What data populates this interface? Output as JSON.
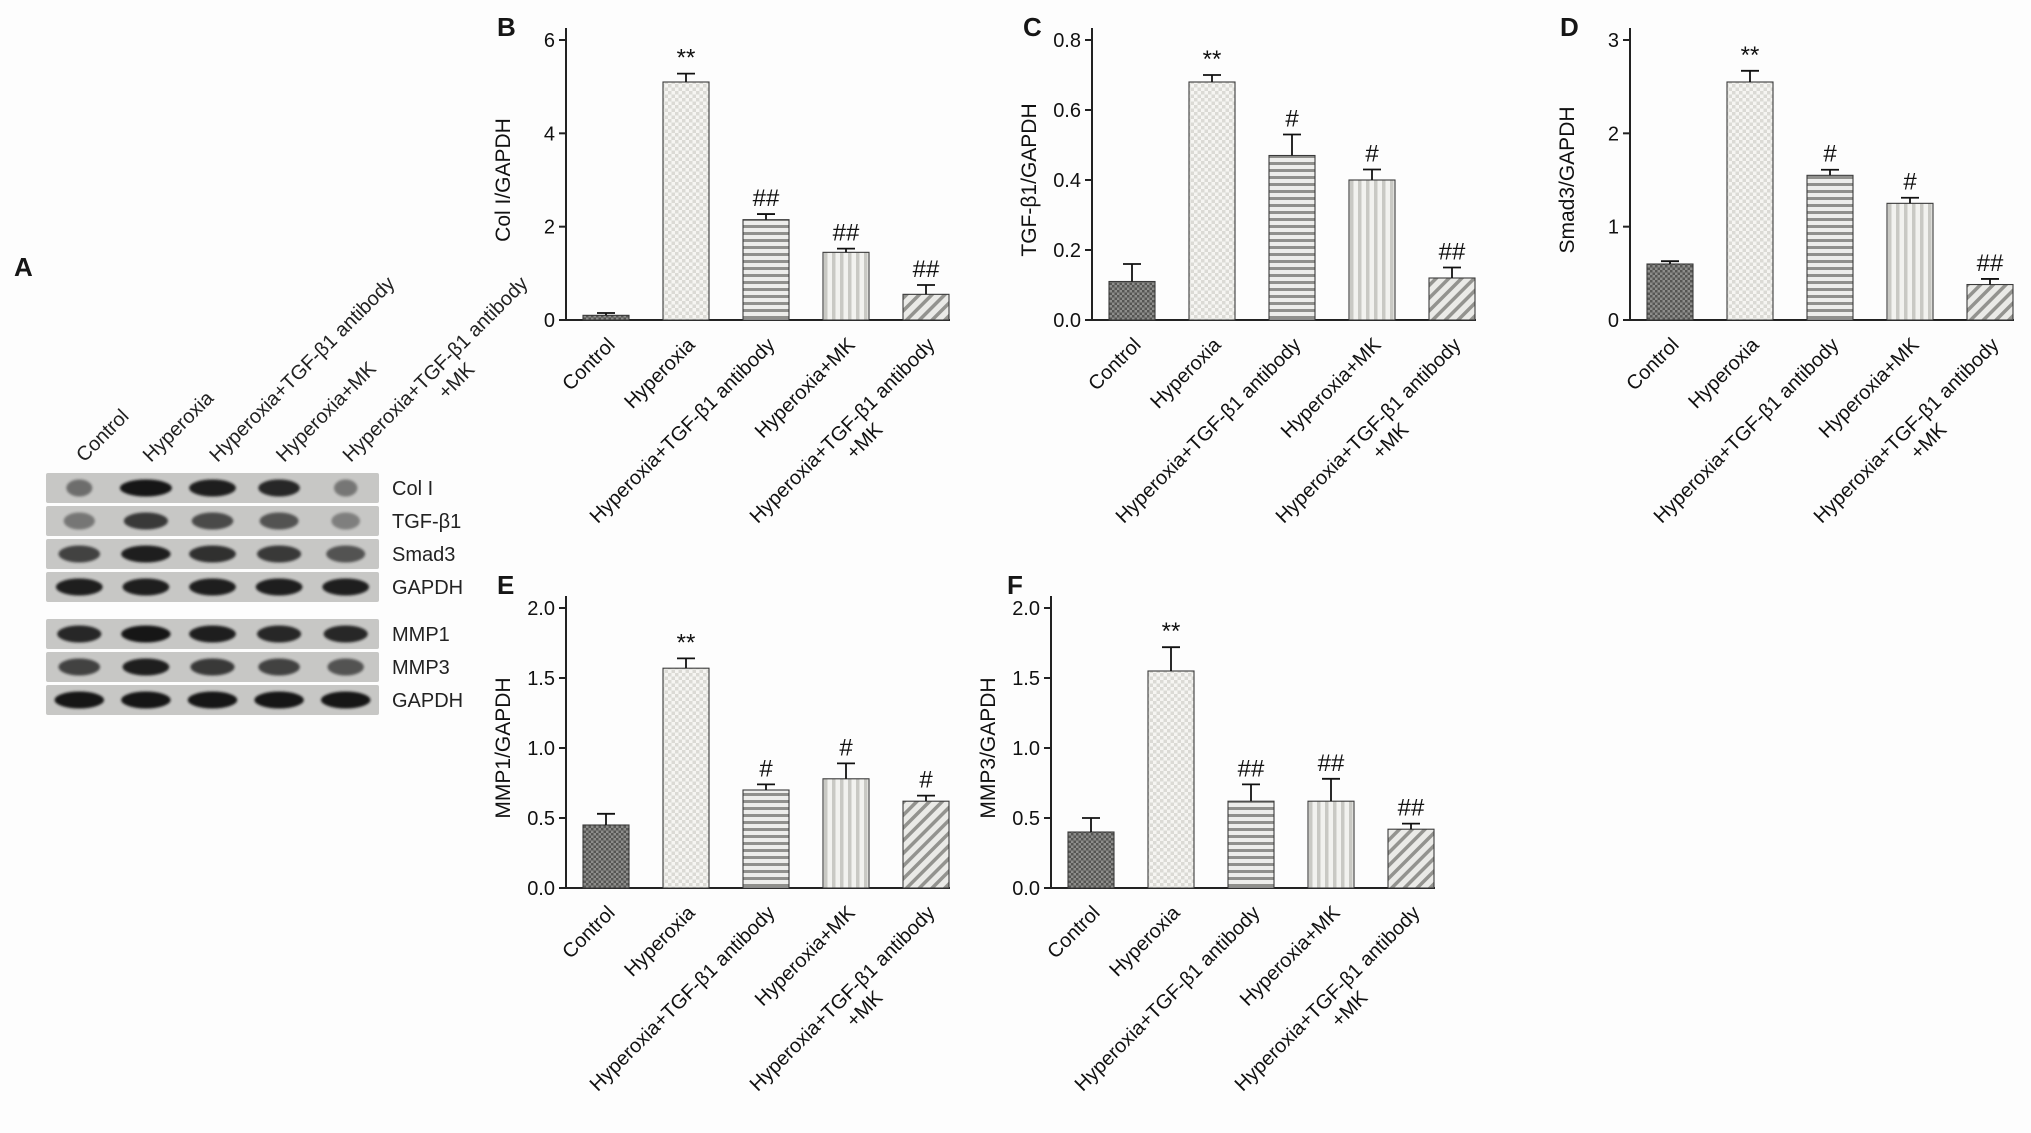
{
  "panel_labels": [
    "A",
    "B",
    "C",
    "D",
    "E",
    "F"
  ],
  "colors": {
    "background": "#fdfdfd",
    "axis": "#222222",
    "bar_dark_checker": "#555553",
    "bar_light_checker": "#dbdad5",
    "bar_stripe_gray": "#90908d",
    "blot_strip": "#c7c7c5",
    "band": "#151515"
  },
  "categories": [
    "Control",
    "Hyperoxia",
    "Hyperoxia+TGF-β1 antibody",
    "Hyperoxia+MK",
    "Hyperoxia+TGF-β1 antibody\n+MK"
  ],
  "bar_styles": [
    "dark-checker",
    "light-checker",
    "horizontal-lines",
    "vertical-lines",
    "diagonal-lines"
  ],
  "blot": {
    "panel_label": "A",
    "lane_labels": [
      "Control",
      "Hyperoxia",
      "Hyperoxia+TGF-β1 antibody",
      "Hyperoxia+MK",
      "Hyperoxia+TGF-β1 antibody\n+MK"
    ],
    "rows": [
      {
        "label": "Col I",
        "intensities": [
          0.5,
          1.0,
          0.95,
          0.9,
          0.45
        ],
        "widths": [
          0.5,
          1.0,
          0.9,
          0.8,
          0.45
        ]
      },
      {
        "label": "TGF-β1",
        "intensities": [
          0.45,
          0.8,
          0.7,
          0.65,
          0.4
        ],
        "widths": [
          0.6,
          0.85,
          0.8,
          0.75,
          0.55
        ]
      },
      {
        "label": "Smad3",
        "intensities": [
          0.75,
          0.95,
          0.85,
          0.8,
          0.65
        ],
        "widths": [
          0.8,
          0.95,
          0.9,
          0.85,
          0.75
        ]
      },
      {
        "label": "GAPDH",
        "intensities": [
          0.95,
          0.95,
          0.95,
          0.95,
          0.95
        ],
        "widths": [
          0.9,
          0.9,
          0.9,
          0.9,
          0.9
        ]
      },
      {
        "label": "MMP1",
        "intensities": [
          0.9,
          1.0,
          0.95,
          0.9,
          0.9
        ],
        "widths": [
          0.85,
          0.95,
          0.9,
          0.85,
          0.85
        ]
      },
      {
        "label": "MMP3",
        "intensities": [
          0.75,
          0.95,
          0.8,
          0.75,
          0.65
        ],
        "widths": [
          0.8,
          0.9,
          0.85,
          0.8,
          0.7
        ]
      },
      {
        "label": "GAPDH",
        "intensities": [
          1.0,
          1.0,
          1.0,
          1.0,
          1.0
        ],
        "widths": [
          0.95,
          0.95,
          0.95,
          0.95,
          0.95
        ]
      }
    ]
  },
  "chart_data": [
    {
      "panel": "B",
      "type": "bar",
      "categories": [
        "Control",
        "Hyperoxia",
        "Hyperoxia+TGF-β1 antibody",
        "Hyperoxia+MK",
        "Hyperoxia+TGF-β1 antibody\n+MK"
      ],
      "values": [
        0.1,
        5.1,
        2.15,
        1.45,
        0.55
      ],
      "errors": [
        0.05,
        0.18,
        0.12,
        0.08,
        0.2
      ],
      "sig": [
        "",
        "**",
        "##",
        "##",
        "##"
      ],
      "ylabel": "Col I/GAPDH",
      "yticks": [
        "0",
        "2",
        "4",
        "6"
      ],
      "ylim": [
        0,
        6
      ]
    },
    {
      "panel": "C",
      "type": "bar",
      "categories": [
        "Control",
        "Hyperoxia",
        "Hyperoxia+TGF-β1 antibody",
        "Hyperoxia+MK",
        "Hyperoxia+TGF-β1 antibody\n+MK"
      ],
      "values": [
        0.11,
        0.68,
        0.47,
        0.4,
        0.12
      ],
      "errors": [
        0.05,
        0.02,
        0.06,
        0.03,
        0.03
      ],
      "sig": [
        "",
        "**",
        "#",
        "#",
        "##"
      ],
      "ylabel": "TGF-β1/GAPDH",
      "yticks": [
        "0.0",
        "0.2",
        "0.4",
        "0.6",
        "0.8"
      ],
      "ylim": [
        0,
        0.8
      ]
    },
    {
      "panel": "D",
      "type": "bar",
      "categories": [
        "Control",
        "Hyperoxia",
        "Hyperoxia+TGF-β1 antibody",
        "Hyperoxia+MK",
        "Hyperoxia+TGF-β1 antibody\n+MK"
      ],
      "values": [
        0.6,
        2.55,
        1.55,
        1.25,
        0.38
      ],
      "errors": [
        0.03,
        0.12,
        0.06,
        0.06,
        0.06
      ],
      "sig": [
        "",
        "**",
        "#",
        "#",
        "##"
      ],
      "ylabel": "Smad3/GAPDH",
      "yticks": [
        "0",
        "1",
        "2",
        "3"
      ],
      "ylim": [
        0,
        3
      ]
    },
    {
      "panel": "E",
      "type": "bar",
      "categories": [
        "Control",
        "Hyperoxia",
        "Hyperoxia+TGF-β1 antibody",
        "Hyperoxia+MK",
        "Hyperoxia+TGF-β1 antibody\n+MK"
      ],
      "values": [
        0.45,
        1.57,
        0.7,
        0.78,
        0.62
      ],
      "errors": [
        0.08,
        0.07,
        0.04,
        0.11,
        0.04
      ],
      "sig": [
        "",
        "**",
        "#",
        "#",
        "#"
      ],
      "ylabel": "MMP1/GAPDH",
      "yticks": [
        "0.0",
        "0.5",
        "1.0",
        "1.5",
        "2.0"
      ],
      "ylim": [
        0,
        2
      ]
    },
    {
      "panel": "F",
      "type": "bar",
      "categories": [
        "Control",
        "Hyperoxia",
        "Hyperoxia+TGF-β1 antibody",
        "Hyperoxia+MK",
        "Hyperoxia+TGF-β1 antibody\n+MK"
      ],
      "values": [
        0.4,
        1.55,
        0.62,
        0.62,
        0.42
      ],
      "errors": [
        0.1,
        0.17,
        0.12,
        0.16,
        0.04
      ],
      "sig": [
        "",
        "**",
        "##",
        "##",
        "##"
      ],
      "ylabel": "MMP3/GAPDH",
      "yticks": [
        "0.0",
        "0.5",
        "1.0",
        "1.5",
        "2.0"
      ],
      "ylim": [
        0,
        2
      ]
    }
  ]
}
